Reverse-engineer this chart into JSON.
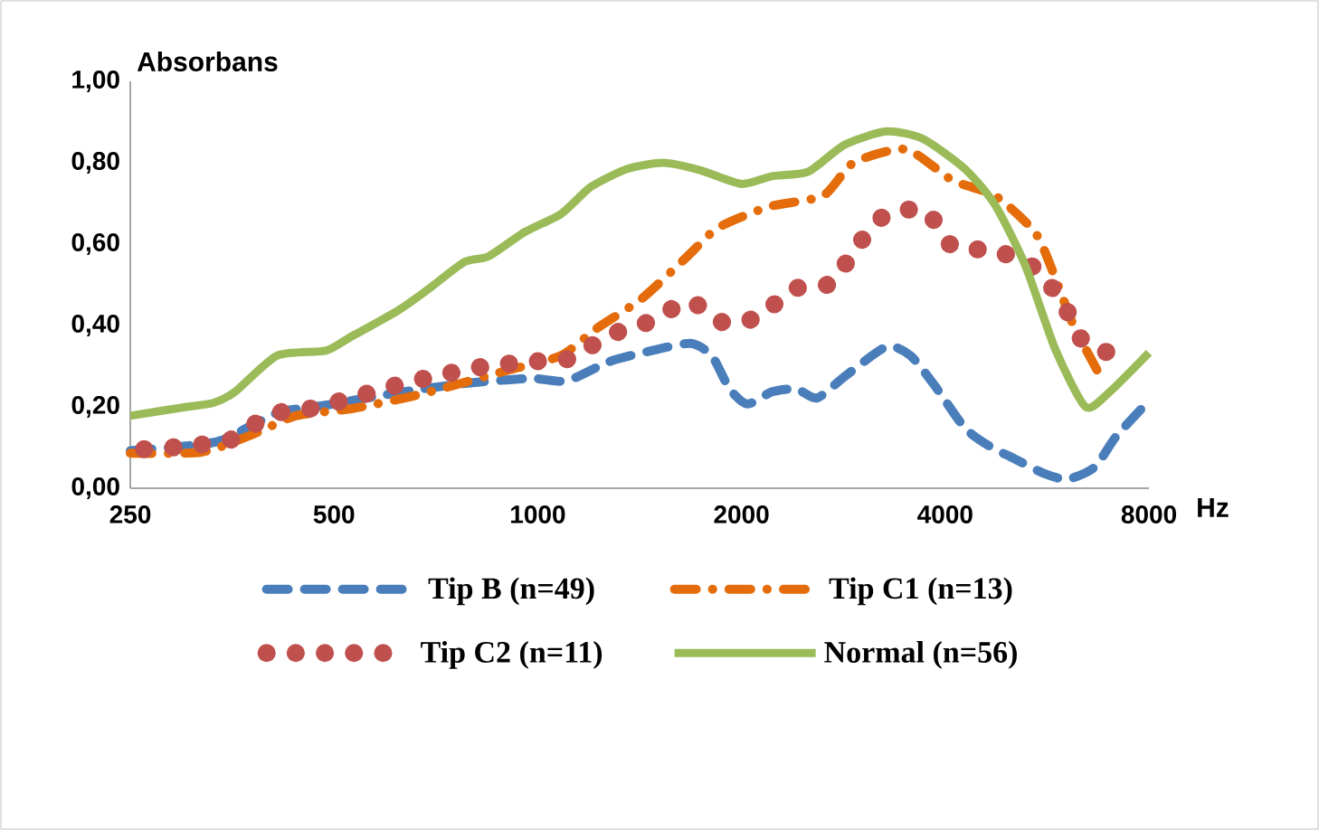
{
  "chart_data": {
    "type": "line",
    "xlabel": "Hz",
    "ylabel": "Absorbans",
    "log": "x",
    "legend": "bottom",
    "marker": "none",
    "xlim": [
      250,
      8000
    ],
    "xticks": [
      250,
      500,
      1000,
      2000,
      4000,
      8000
    ],
    "ylim": [
      0,
      1
    ],
    "yticks": [
      {
        "value": 0,
        "label": "0,00"
      },
      {
        "value": 0.2,
        "label": "0,20"
      },
      {
        "value": 0.4,
        "label": "0,40"
      },
      {
        "value": 0.6,
        "label": "0,60"
      },
      {
        "value": 0.8,
        "label": "0,80"
      },
      {
        "value": 1,
        "label": "1,00"
      }
    ],
    "series": [
      {
        "name": "Tip B (n=49)",
        "color": "#4a7ebb",
        "line_style": "dashed",
        "x": [
          250,
          303,
          343,
          412,
          486,
          573,
          675,
          796,
          976,
          1104,
          1274,
          1472,
          1682,
          1808,
          1921,
          2042,
          2219,
          2408,
          2588,
          2838,
          3276,
          3555,
          3861,
          4277,
          4643,
          5042,
          5586,
          6063,
          6653,
          7145,
          8000
        ],
        "values": [
          0.092,
          0.104,
          0.119,
          0.185,
          0.204,
          0.225,
          0.244,
          0.259,
          0.27,
          0.264,
          0.311,
          0.338,
          0.356,
          0.326,
          0.244,
          0.207,
          0.237,
          0.244,
          0.222,
          0.274,
          0.348,
          0.326,
          0.252,
          0.148,
          0.104,
          0.074,
          0.037,
          0.022,
          0.052,
          0.126,
          0.215
        ]
      },
      {
        "name": "Tip C1 (n=13)",
        "color": "#e46c0a",
        "line_style": "dashdot",
        "x": [
          250,
          319,
          380,
          439,
          533,
          648,
          748,
          899,
          1082,
          1223,
          1427,
          1664,
          1846,
          2196,
          2640,
          2928,
          3500,
          4107,
          4741,
          5449,
          5880,
          6190,
          6788
        ],
        "values": [
          0.086,
          0.089,
          0.133,
          0.178,
          0.196,
          0.225,
          0.252,
          0.289,
          0.326,
          0.393,
          0.467,
          0.57,
          0.64,
          0.692,
          0.719,
          0.8,
          0.833,
          0.756,
          0.719,
          0.625,
          0.496,
          0.4,
          0.274
        ]
      },
      {
        "name": "Tip C2 (n=11)",
        "color": "#c0504d",
        "line_style": "dotted",
        "x": [
          262,
          306,
          354,
          402,
          466,
          539,
          624,
          721,
          832,
          967,
          1116,
          1270,
          1466,
          1675,
          1883,
          2129,
          2375,
          2713,
          2957,
          3276,
          3745,
          4107,
          4711,
          5381,
          5941,
          6382,
          7175
        ],
        "values": [
          0.096,
          0.104,
          0.121,
          0.181,
          0.197,
          0.225,
          0.255,
          0.279,
          0.299,
          0.311,
          0.319,
          0.375,
          0.41,
          0.459,
          0.407,
          0.422,
          0.489,
          0.504,
          0.593,
          0.674,
          0.681,
          0.593,
          0.585,
          0.545,
          0.462,
          0.363,
          0.326
        ]
      },
      {
        "name": "Normal (n=56)",
        "color": "#9bbb59",
        "line_style": "solid",
        "x": [
          250,
          303,
          332,
          357,
          412,
          486,
          527,
          622,
          689,
          779,
          846,
          957,
          1082,
          1199,
          1357,
          1534,
          1735,
          2000,
          2219,
          2510,
          2838,
          3276,
          3707,
          4277,
          4741,
          5252,
          5819,
          6448,
          7003,
          8000
        ],
        "values": [
          0.178,
          0.2,
          0.21,
          0.237,
          0.326,
          0.338,
          0.37,
          0.437,
          0.489,
          0.556,
          0.57,
          0.63,
          0.674,
          0.741,
          0.785,
          0.8,
          0.782,
          0.748,
          0.767,
          0.778,
          0.844,
          0.877,
          0.859,
          0.785,
          0.696,
          0.548,
          0.341,
          0.2,
          0.237,
          0.333
        ]
      }
    ]
  }
}
